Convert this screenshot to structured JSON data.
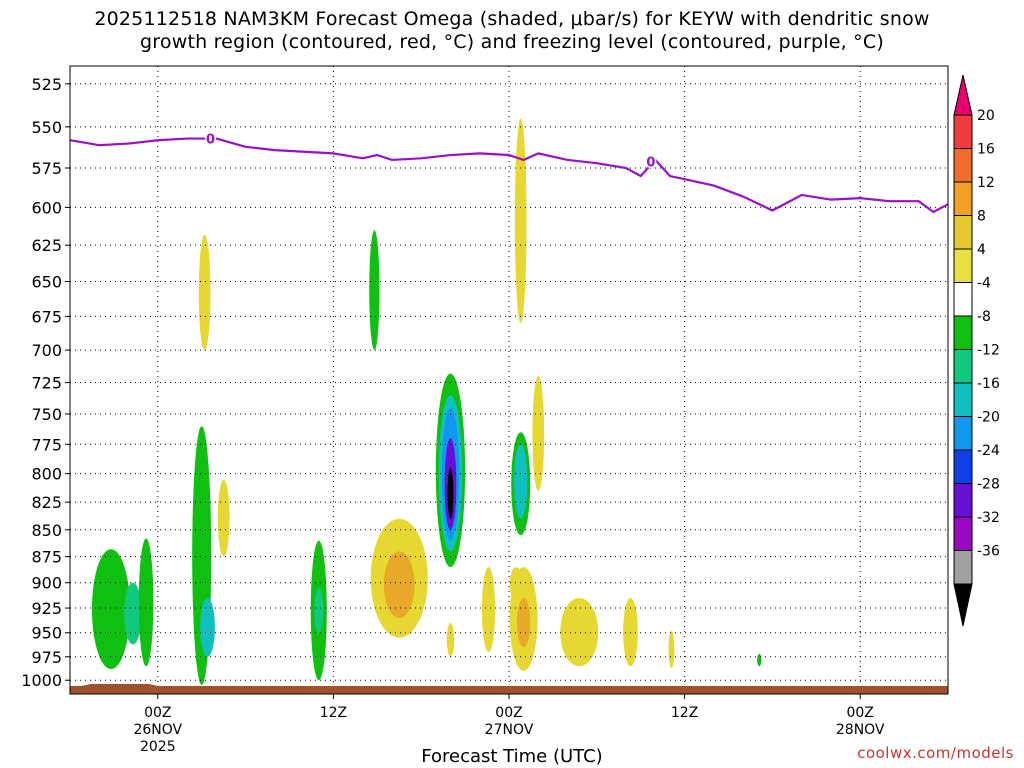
{
  "title_line1": "2025112518 NAM3KM Forecast Omega (shaded, μbar/s) for KEYW with dendritic snow",
  "title_line2": "growth region (contoured, red, °C) and freezing level (contoured, purple, °C)",
  "credit": "coolwx.com/models",
  "chart_data": {
    "type": "heatmap",
    "title": "2025112518 NAM3KM Forecast Omega (shaded, μbar/s) for KEYW with dendritic snow growth region (contoured, red, °C) and freezing level (contoured, purple, °C)",
    "xlabel": "Forecast Time (UTC)",
    "ylabel": "",
    "x_range_hours": [
      -6,
      54
    ],
    "y_range_hPa": [
      1015,
      515
    ],
    "y_scale": "log-pressure",
    "grid": true,
    "x_ticks": [
      {
        "hour": 0,
        "label1": "00Z",
        "label2": "26NOV",
        "label3": "2025"
      },
      {
        "hour": 12,
        "label1": "12Z",
        "label2": "",
        "label3": ""
      },
      {
        "hour": 24,
        "label1": "00Z",
        "label2": "27NOV",
        "label3": ""
      },
      {
        "hour": 36,
        "label1": "12Z",
        "label2": "",
        "label3": ""
      },
      {
        "hour": 48,
        "label1": "00Z",
        "label2": "28NOV",
        "label3": ""
      }
    ],
    "y_ticks": [
      "525",
      "550",
      "575",
      "600",
      "625",
      "650",
      "675",
      "700",
      "725",
      "750",
      "775",
      "800",
      "825",
      "850",
      "875",
      "900",
      "925",
      "950",
      "975",
      "1000"
    ],
    "colorbar": {
      "labels": [
        "20",
        "16",
        "12",
        "8",
        "4",
        "-4",
        "-8",
        "-12",
        "-16",
        "-20",
        "-24",
        "-28",
        "-32",
        "-36"
      ],
      "colors_top_to_bottom": [
        "#e8006e",
        "#f03c3c",
        "#f06c2c",
        "#f0a024",
        "#e6c830",
        "#e8e040",
        "#ffffff",
        "#10c010",
        "#10c880",
        "#10c0c0",
        "#1098f0",
        "#1040e8",
        "#6810d8",
        "#9808c0",
        "#a0a0a0",
        "#000000"
      ]
    },
    "freezing_level": {
      "label": "0",
      "x_hours": [
        -6,
        -4,
        -2,
        0,
        2,
        4,
        6,
        8,
        10,
        12,
        14,
        15,
        16,
        18,
        20,
        22,
        24,
        25,
        26,
        28,
        30,
        32,
        33,
        34,
        35,
        36,
        38,
        40,
        42,
        44,
        46,
        48,
        50,
        52,
        53,
        54
      ],
      "pressure_hPa": [
        558,
        561,
        560,
        558,
        557,
        557,
        562,
        564,
        565,
        566,
        569,
        567,
        570,
        569,
        567,
        566,
        567,
        570,
        566,
        570,
        572,
        575,
        580,
        570,
        580,
        582,
        586,
        593,
        602,
        592,
        595,
        594,
        596,
        596,
        603,
        598
      ]
    },
    "omega_features": [
      {
        "time_h": -3.2,
        "p_top": 868,
        "p_bot": 988,
        "width_h": 2.6,
        "value": -6
      },
      {
        "time_h": -1.7,
        "p_top": 900,
        "p_bot": 962,
        "width_h": 1.2,
        "value": -10
      },
      {
        "time_h": -0.8,
        "p_top": 858,
        "p_bot": 985,
        "width_h": 1.0,
        "value": -6
      },
      {
        "time_h": 3.2,
        "p_top": 618,
        "p_bot": 700,
        "width_h": 0.8,
        "value": 5
      },
      {
        "time_h": 3.0,
        "p_top": 760,
        "p_bot": 1005,
        "width_h": 1.3,
        "value": -6
      },
      {
        "time_h": 3.4,
        "p_top": 915,
        "p_bot": 975,
        "width_h": 1.0,
        "value": -12
      },
      {
        "time_h": 4.5,
        "p_top": 805,
        "p_bot": 875,
        "width_h": 0.8,
        "value": 5
      },
      {
        "time_h": 11.0,
        "p_top": 860,
        "p_bot": 1000,
        "width_h": 1.1,
        "value": -6
      },
      {
        "time_h": 11.0,
        "p_top": 905,
        "p_bot": 950,
        "width_h": 0.6,
        "value": -10
      },
      {
        "time_h": 14.8,
        "p_top": 615,
        "p_bot": 700,
        "width_h": 0.7,
        "value": -6
      },
      {
        "time_h": 16.5,
        "p_top": 840,
        "p_bot": 955,
        "width_h": 3.9,
        "value": 5
      },
      {
        "time_h": 16.5,
        "p_top": 870,
        "p_bot": 935,
        "width_h": 2.1,
        "value": 9
      },
      {
        "time_h": 20.0,
        "p_top": 718,
        "p_bot": 885,
        "width_h": 2.0,
        "value": -6
      },
      {
        "time_h": 20.0,
        "p_top": 735,
        "p_bot": 870,
        "width_h": 1.6,
        "value": -12
      },
      {
        "time_h": 20.0,
        "p_top": 745,
        "p_bot": 860,
        "width_h": 1.2,
        "value": -18
      },
      {
        "time_h": 20.0,
        "p_top": 770,
        "p_bot": 850,
        "width_h": 0.8,
        "value": -26
      },
      {
        "time_h": 20.0,
        "p_top": 795,
        "p_bot": 840,
        "width_h": 0.4,
        "value": -36
      },
      {
        "time_h": 20.0,
        "p_top": 940,
        "p_bot": 975,
        "width_h": 0.5,
        "value": 5
      },
      {
        "time_h": 24.8,
        "p_top": 545,
        "p_bot": 680,
        "width_h": 0.8,
        "value": 5
      },
      {
        "time_h": 24.8,
        "p_top": 765,
        "p_bot": 855,
        "width_h": 1.3,
        "value": -6
      },
      {
        "time_h": 24.8,
        "p_top": 775,
        "p_bot": 840,
        "width_h": 0.9,
        "value": -12
      },
      {
        "time_h": 26.0,
        "p_top": 720,
        "p_bot": 815,
        "width_h": 0.8,
        "value": 5
      },
      {
        "time_h": 25.0,
        "p_top": 885,
        "p_bot": 990,
        "width_h": 1.9,
        "value": 5
      },
      {
        "time_h": 25.0,
        "p_top": 915,
        "p_bot": 965,
        "width_h": 0.9,
        "value": 9
      },
      {
        "time_h": 22.6,
        "p_top": 885,
        "p_bot": 970,
        "width_h": 0.9,
        "value": 5
      },
      {
        "time_h": 24.5,
        "p_top": 885,
        "p_bot": 918,
        "width_h": 0.9,
        "value": 5
      },
      {
        "time_h": 28.8,
        "p_top": 915,
        "p_bot": 985,
        "width_h": 2.6,
        "value": 5
      },
      {
        "time_h": 32.3,
        "p_top": 915,
        "p_bot": 985,
        "width_h": 1.0,
        "value": 5
      },
      {
        "time_h": 35.1,
        "p_top": 948,
        "p_bot": 987,
        "width_h": 0.4,
        "value": 5
      },
      {
        "time_h": 41.1,
        "p_top": 972,
        "p_bot": 985,
        "width_h": 0.3,
        "value": -6
      }
    ]
  }
}
